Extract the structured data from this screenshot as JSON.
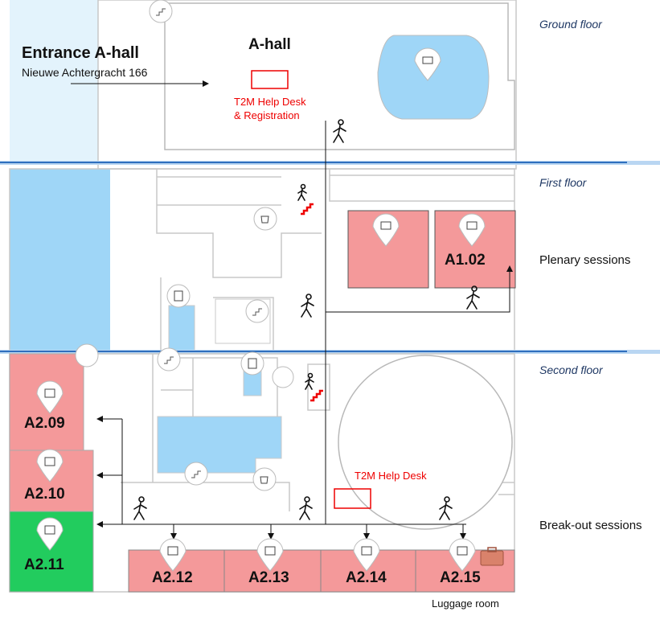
{
  "floors": {
    "ground": "Ground floor",
    "first": "First floor",
    "second": "Second floor"
  },
  "entrance": {
    "title": "Entrance A-hall",
    "address": "Nieuwe Achtergracht 166"
  },
  "ahall_label": "A-hall",
  "helpdesk_ground": [
    "T2M Help Desk",
    "& Registration"
  ],
  "helpdesk_second": "T2M Help Desk",
  "plenary_label": "Plenary sessions",
  "breakout_label": "Break-out sessions",
  "luggage_label": "Luggage room",
  "rooms": {
    "a102": "A1.02",
    "a209": "A2.09",
    "a210": "A2.10",
    "a211": "A2.11",
    "a212": "A2.12",
    "a213": "A2.13",
    "a214": "A2.14",
    "a215": "A2.15"
  },
  "colors": {
    "session_room": "#f4999a",
    "available_room": "#22cc5e",
    "hall_blue": "#9fd6f7",
    "floor_line": "#2f6fbe",
    "help_red": "#e00000"
  }
}
